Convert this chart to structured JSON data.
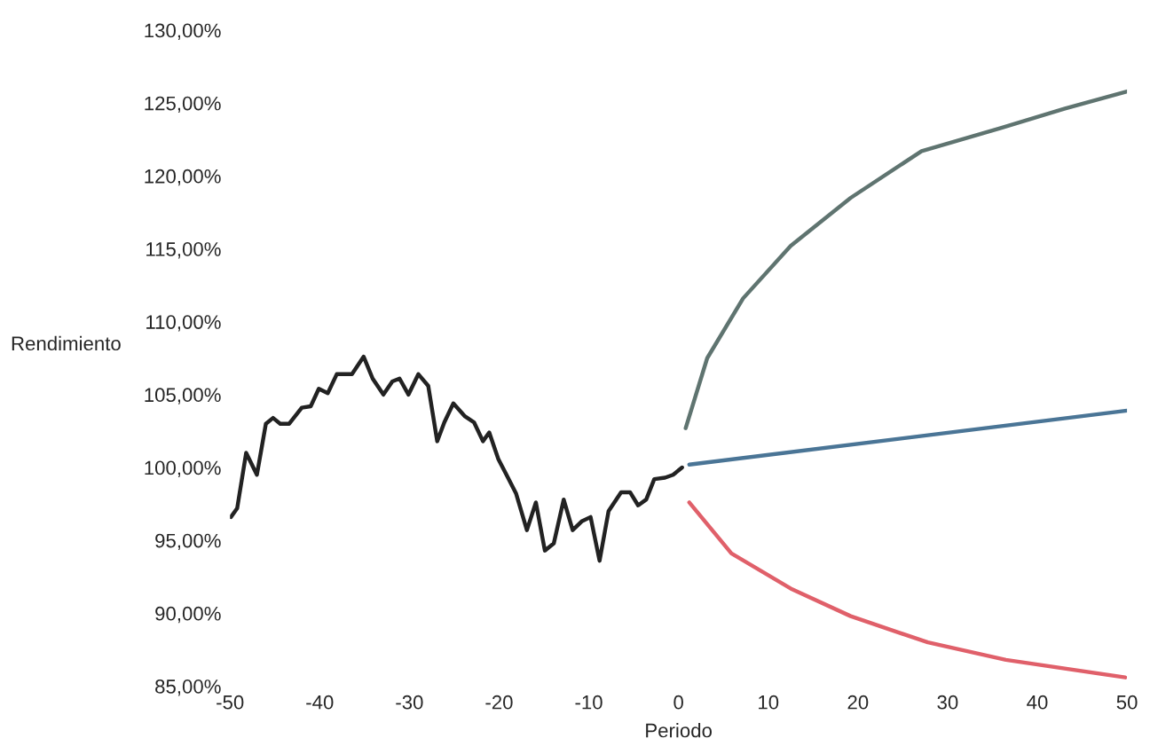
{
  "chart_data": {
    "type": "line",
    "xlabel": "Periodo",
    "ylabel": "Rendimiento",
    "xlim": [
      -50,
      50
    ],
    "xticks": [
      -50,
      -40,
      -30,
      -20,
      -10,
      0,
      10,
      20,
      30,
      40,
      50
    ],
    "ylim": [
      85,
      130
    ],
    "yticks": [
      {
        "value": 85,
        "label": "85,00%"
      },
      {
        "value": 90,
        "label": "90,00%"
      },
      {
        "value": 95,
        "label": "95,00%"
      },
      {
        "value": 100,
        "label": "100,00%"
      },
      {
        "value": 105,
        "label": "105,00%"
      },
      {
        "value": 110,
        "label": "110,00%"
      },
      {
        "value": 115,
        "label": "115,00%"
      },
      {
        "value": 120,
        "label": "120,00%"
      },
      {
        "value": 125,
        "label": "125,00%"
      },
      {
        "value": 130,
        "label": "130,00%"
      }
    ],
    "grid": false,
    "marker": "none",
    "line_style": "solid",
    "series": [
      {
        "color": "#222222",
        "x": [
          -49.9,
          -49.2,
          -48.2,
          -47.0,
          -46.0,
          -45.2,
          -44.4,
          -43.4,
          -42.0,
          -41.0,
          -40.1,
          -39.1,
          -38.1,
          -36.4,
          -35.1,
          -34.1,
          -32.9,
          -31.9,
          -31.1,
          -30.1,
          -29.0,
          -27.9,
          -26.9,
          -26.1,
          -25.1,
          -23.8,
          -22.8,
          -21.8,
          -21.1,
          -20.1,
          -19.1,
          -18.1,
          -16.9,
          -15.9,
          -14.9,
          -13.9,
          -12.8,
          -11.8,
          -10.8,
          -9.8,
          -8.8,
          -7.8,
          -6.4,
          -5.4,
          -4.5,
          -3.6,
          -2.7,
          -1.5,
          -0.6,
          0.4
        ],
        "values": [
          96.6,
          97.2,
          101.0,
          99.5,
          103.0,
          103.4,
          103.0,
          103.0,
          104.1,
          104.2,
          105.4,
          105.1,
          106.4,
          106.4,
          107.6,
          106.1,
          105.0,
          105.9,
          106.1,
          105.0,
          106.4,
          105.6,
          101.8,
          103.1,
          104.4,
          103.5,
          103.1,
          101.8,
          102.4,
          100.6,
          99.4,
          98.2,
          95.7,
          97.6,
          94.3,
          94.8,
          97.8,
          95.7,
          96.3,
          96.6,
          93.6,
          97.0,
          98.3,
          98.3,
          97.4,
          97.8,
          99.2,
          99.3,
          99.5,
          100.0
        ]
      },
      {
        "color": "#5f7470",
        "x": [
          0.8,
          3.2,
          7.2,
          12.5,
          19.2,
          27.1,
          36.0,
          43.0,
          50.0
        ],
        "values": [
          102.7,
          107.5,
          111.6,
          115.2,
          118.5,
          121.7,
          123.3,
          124.6,
          125.8
        ]
      },
      {
        "color": "#4a7596",
        "x": [
          1.2,
          25.0,
          50.0
        ],
        "values": [
          100.2,
          102.0,
          103.9
        ]
      },
      {
        "color": "#e0606a",
        "x": [
          1.2,
          5.9,
          12.5,
          19.2,
          27.8,
          36.5,
          49.8
        ],
        "values": [
          97.6,
          94.1,
          91.7,
          89.8,
          88.0,
          86.8,
          85.6
        ]
      }
    ]
  }
}
